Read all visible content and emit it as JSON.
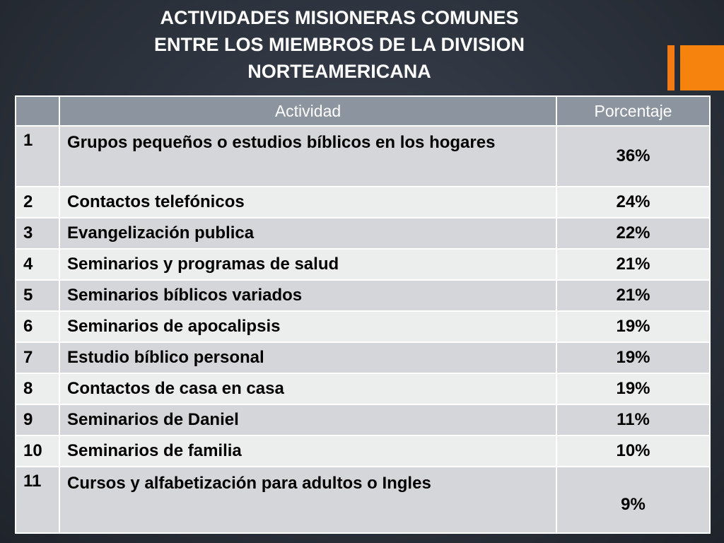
{
  "title": "ACTIVIDADES MISIONERAS COMUNES\nENTRE LOS MIEMBROS DE LA DIVISION\nNORTEAMERICANA",
  "colors": {
    "background": "#2c323c",
    "accent": "#f7830f",
    "header": "#8c94a0",
    "row_odd": "#d4d6da",
    "row_even": "#eceded"
  },
  "chart_data": {
    "type": "table",
    "title": "ACTIVIDADES MISIONERAS COMUNES ENTRE LOS MIEMBROS DE LA DIVISION NORTEAMERICANA",
    "columns": [
      "",
      "Actividad",
      "Porcentaje"
    ],
    "rows": [
      [
        "1",
        "Grupos pequeños o estudios bíblicos en los hogares",
        "36%"
      ],
      [
        "2",
        "Contactos telefónicos",
        "24%"
      ],
      [
        "3",
        "Evangelización publica",
        "22%"
      ],
      [
        "4",
        "Seminarios y programas de salud",
        "21%"
      ],
      [
        "5",
        "Seminarios bíblicos variados",
        "21%"
      ],
      [
        "6",
        "Seminarios de apocalipsis",
        "19%"
      ],
      [
        "7",
        "Estudio bíblico personal",
        "19%"
      ],
      [
        "8",
        "Contactos de casa en casa",
        "19%"
      ],
      [
        "9",
        "Seminarios de Daniel",
        "11%"
      ],
      [
        "10",
        "Seminarios de familia",
        "10%"
      ],
      [
        "11",
        "Cursos y alfabetización para adultos o Ingles",
        "9%"
      ]
    ],
    "values": [
      36,
      24,
      22,
      21,
      21,
      19,
      19,
      19,
      11,
      10,
      9
    ]
  }
}
